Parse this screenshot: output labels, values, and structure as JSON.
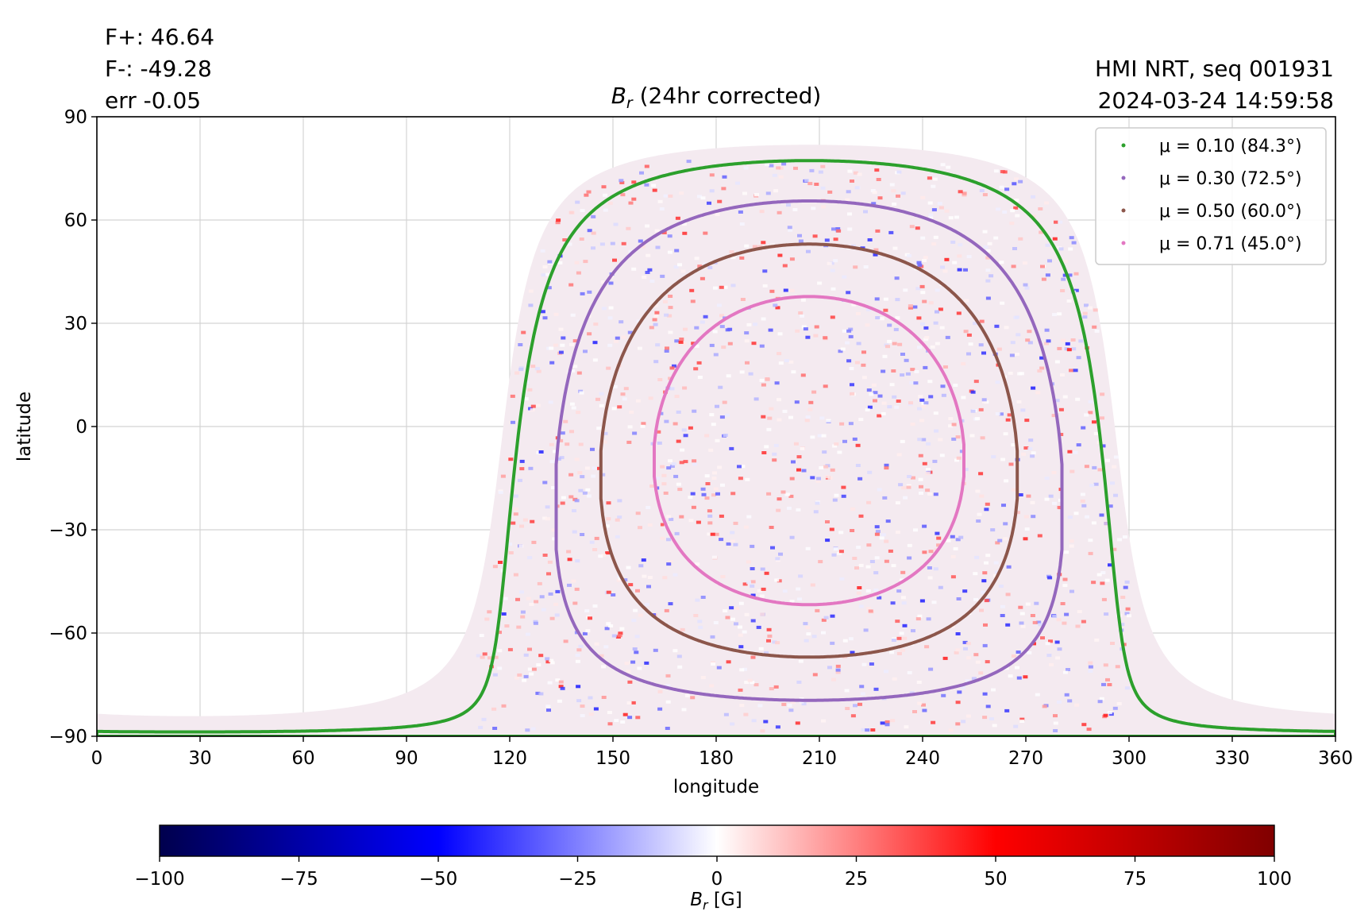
{
  "info": {
    "f_plus": "F+: 46.64",
    "f_minus": "F-: -49.28",
    "err": "err -0.05",
    "instrument": "HMI NRT, seq 001931",
    "timestamp": "2024-03-24 14:59:58"
  },
  "chart_data": {
    "type": "heatmap",
    "title_symbol": "B",
    "title_sub": "r",
    "title_rest": " (24hr corrected)",
    "xlabel": "longitude",
    "ylabel": "latitude",
    "xlim": [
      0,
      360
    ],
    "ylim": [
      -90,
      90
    ],
    "xticks": [
      0,
      30,
      60,
      90,
      120,
      150,
      180,
      210,
      240,
      270,
      300,
      330,
      360
    ],
    "yticks": [
      -90,
      -60,
      -30,
      0,
      30,
      60,
      90
    ],
    "ytick_labels": [
      "−90",
      "−60",
      "−30",
      "0",
      "30",
      "60",
      "90"
    ],
    "grid": true,
    "disk_center": {
      "lon": 207,
      "lat": -7
    },
    "legend": {
      "placement": "top-right",
      "entries": [
        {
          "label": "μ = 0.10 (84.3°)",
          "mu": 0.1,
          "angle_deg": 84.3,
          "color": "#2ca02c"
        },
        {
          "label": "μ = 0.30 (72.5°)",
          "mu": 0.3,
          "angle_deg": 72.5,
          "color": "#9467bd"
        },
        {
          "label": "μ = 0.50 (60.0°)",
          "mu": 0.5,
          "angle_deg": 60.0,
          "color": "#8c564b"
        },
        {
          "label": "μ = 0.71 (45.0°)",
          "mu": 0.71,
          "angle_deg": 45.0,
          "color": "#e377c2"
        }
      ]
    },
    "colorbar": {
      "label_symbol": "B",
      "label_sub": "r",
      "label_rest": " [G]",
      "range": [
        -100,
        100
      ],
      "ticks": [
        -100,
        -75,
        -50,
        -25,
        0,
        25,
        50,
        75,
        100
      ],
      "tick_labels": [
        "−100",
        "−75",
        "−50",
        "−25",
        "0",
        "25",
        "50",
        "75",
        "100"
      ],
      "colormap": "seismic",
      "stops": [
        "#00004d",
        "#0000ff",
        "#ffffff",
        "#ff0000",
        "#800000"
      ]
    }
  }
}
